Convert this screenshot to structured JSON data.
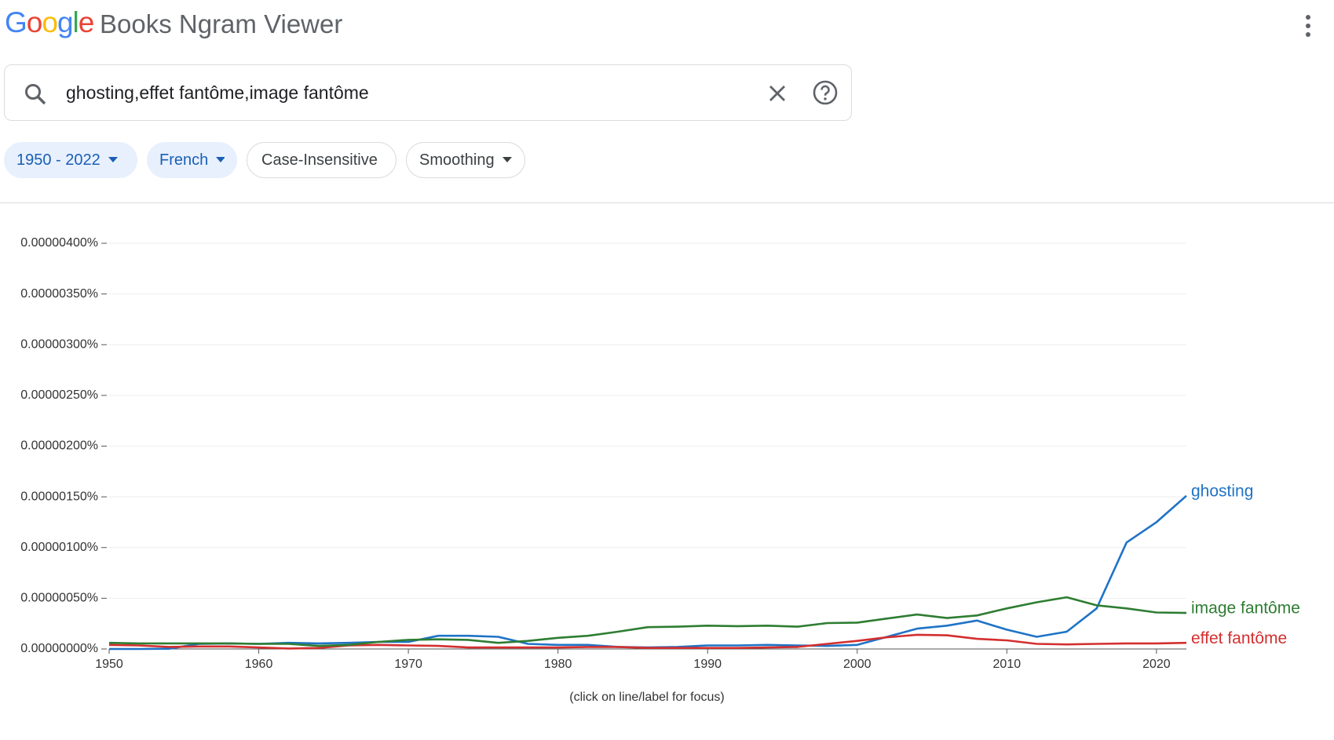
{
  "header": {
    "logo": "Google",
    "title": "Books Ngram Viewer"
  },
  "search": {
    "query": "ghosting,effet fantôme,image fantôme"
  },
  "chips": [
    {
      "label": "1950 - 2022"
    },
    {
      "label": "French"
    },
    {
      "label": "Case-Insensitive"
    },
    {
      "label": "Smoothing"
    }
  ],
  "chart_data": {
    "type": "line",
    "x": [
      1950,
      1952,
      1954,
      1956,
      1958,
      1960,
      1962,
      1964,
      1966,
      1968,
      1970,
      1972,
      1974,
      1976,
      1978,
      1980,
      1982,
      1984,
      1986,
      1988,
      1990,
      1992,
      1994,
      1996,
      1998,
      2000,
      2002,
      2004,
      2006,
      2008,
      2010,
      2012,
      2014,
      2016,
      2018,
      2020,
      2022
    ],
    "xlim": [
      1950,
      2022
    ],
    "xticks": [
      1950,
      1960,
      1970,
      1980,
      1990,
      2000,
      2010,
      2020
    ],
    "ylim": [
      0,
      4e-06
    ],
    "yticks": [
      {
        "value": 0,
        "label": "0.00000000%"
      },
      {
        "value": 5e-07,
        "label": "0.00000050%"
      },
      {
        "value": 1e-06,
        "label": "0.00000100%"
      },
      {
        "value": 1.5e-06,
        "label": "0.00000150%"
      },
      {
        "value": 2e-06,
        "label": "0.00000200%"
      },
      {
        "value": 2.5e-06,
        "label": "0.00000250%"
      },
      {
        "value": 3e-06,
        "label": "0.00000300%"
      },
      {
        "value": 3.5e-06,
        "label": "0.00000350%"
      },
      {
        "value": 4e-06,
        "label": "0.00000400%"
      }
    ],
    "grid": true,
    "series": [
      {
        "name": "ghosting",
        "color": "#1f73c6",
        "values": [
          0,
          0,
          2e-09,
          5e-08,
          5.5e-08,
          5e-08,
          6e-08,
          5.5e-08,
          6e-08,
          7e-08,
          7e-08,
          1.3e-07,
          1.3e-07,
          1.2e-07,
          5e-08,
          4e-08,
          4e-08,
          2e-08,
          1.5e-08,
          2e-08,
          3.5e-08,
          3.5e-08,
          4e-08,
          3.5e-08,
          3e-08,
          4e-08,
          1.2e-07,
          2e-07,
          2.3e-07,
          2.8e-07,
          1.9e-07,
          1.2e-07,
          1.7e-07,
          4e-07,
          1.05e-06,
          1.25e-06,
          1.51e-06
        ]
      },
      {
        "name": "effet fantôme",
        "color": "#d32f2f",
        "values": [
          4e-08,
          3.5e-08,
          2e-08,
          2.5e-08,
          2.5e-08,
          1.5e-08,
          5e-09,
          1e-08,
          3.5e-08,
          4e-08,
          3.5e-08,
          3e-08,
          1.5e-08,
          1.5e-08,
          1.5e-08,
          1.5e-08,
          2e-08,
          2e-08,
          1e-08,
          1e-08,
          1e-08,
          1e-08,
          1.5e-08,
          2e-08,
          5e-08,
          8e-08,
          1.15e-07,
          1.4e-07,
          1.35e-07,
          1e-07,
          8.5e-08,
          5e-08,
          4.5e-08,
          5e-08,
          5.5e-08,
          5.5e-08,
          6e-08
        ]
      },
      {
        "name": "image fantôme",
        "color": "#2e7d32",
        "values": [
          6e-08,
          5.5e-08,
          5.5e-08,
          5.5e-08,
          5.5e-08,
          5e-08,
          5e-08,
          3e-08,
          4e-08,
          7e-08,
          9e-08,
          9.5e-08,
          9e-08,
          6e-08,
          8e-08,
          1.1e-07,
          1.3e-07,
          1.7e-07,
          2.15e-07,
          2.2e-07,
          2.3e-07,
          2.25e-07,
          2.3e-07,
          2.2e-07,
          2.55e-07,
          2.6e-07,
          3e-07,
          3.4e-07,
          3.05e-07,
          3.3e-07,
          4e-07,
          4.6e-07,
          5.1e-07,
          4.3e-07,
          4e-07,
          3.6e-07,
          3.55e-07
        ]
      }
    ],
    "note": "(click on line/label for focus)"
  }
}
